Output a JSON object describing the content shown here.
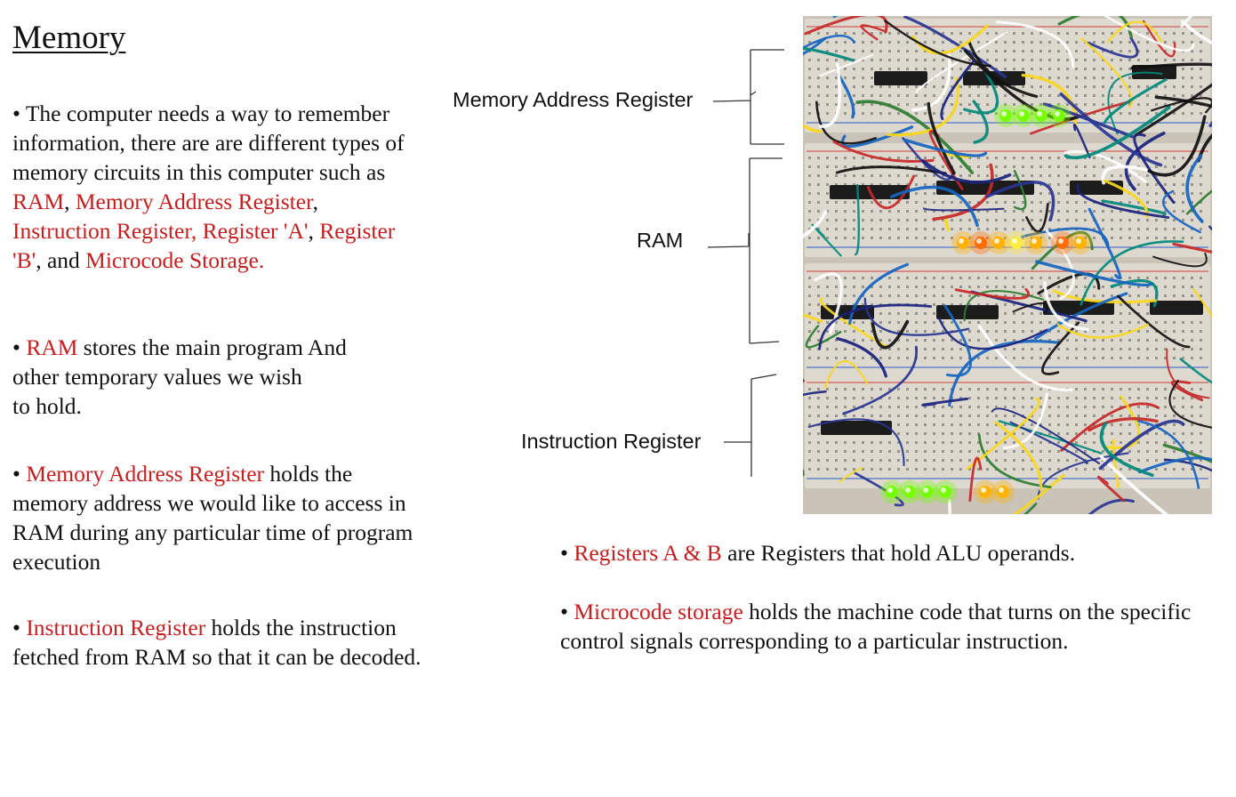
{
  "title": "Memory",
  "bullets_left": [
    {
      "segments": [
        {
          "t": "• The computer needs a way to remember information, there are are different types of memory circuits in this computer such as ",
          "red": false
        },
        {
          "t": "RAM",
          "red": true
        },
        {
          "t": ", ",
          "red": false
        },
        {
          "t": "Memory Address Register",
          "red": true
        },
        {
          "t": ", ",
          "red": false
        },
        {
          "t": "Instruction Register,",
          "red": true
        },
        {
          "t": " ",
          "red": false
        },
        {
          "t": "Register 'A'",
          "red": true
        },
        {
          "t": ", ",
          "red": false
        },
        {
          "t": "Register 'B'",
          "red": true
        },
        {
          "t": ", and ",
          "red": false
        },
        {
          "t": "Microcode Storage.",
          "red": true
        }
      ]
    },
    {
      "segments": [
        {
          "t": "• ",
          "red": false
        },
        {
          "t": "RAM",
          "red": true
        },
        {
          "t": " stores the main program And other temporary values we wish",
          "red": false
        },
        {
          "br": true
        },
        {
          "t": "to hold.",
          "red": false
        }
      ]
    },
    {
      "segments": [
        {
          "t": "• ",
          "red": false
        },
        {
          "t": "Memory Address Register",
          "red": true
        },
        {
          "t": " holds the memory address we would like to access in RAM during any particular time of program execution",
          "red": false
        }
      ]
    },
    {
      "segments": [
        {
          "t": "• ",
          "red": false
        },
        {
          "t": "Instruction Register",
          "red": true
        },
        {
          "t": " holds the instruction fetched from RAM so that it can be decoded.",
          "red": false
        }
      ]
    }
  ],
  "bullets_right": [
    {
      "segments": [
        {
          "t": "• ",
          "red": false
        },
        {
          "t": "Registers A & B",
          "red": true
        },
        {
          "t": " are Registers that hold ALU operands.",
          "red": false
        }
      ]
    },
    {
      "segments": [
        {
          "t": "• ",
          "red": false
        },
        {
          "t": "Microcode storage",
          "red": true
        },
        {
          "t": " holds the machine code that turns on the specific control signals corresponding to a particular instruction.",
          "red": false
        }
      ]
    }
  ],
  "labels": {
    "mar": "Memory Address Register",
    "ram": "RAM",
    "ir": "Instruction Register"
  },
  "photo": {
    "icon": "breadboard-computer-photo",
    "board_color": "#ded9cf",
    "wire_colors": [
      "#1a237e",
      "#283593",
      "#2e7d32",
      "#00897b",
      "#c62828",
      "#f9d71c",
      "#1565c0",
      "#111111",
      "#ffffff"
    ],
    "led_colors": [
      "#ffb300",
      "#ff6d00",
      "#ffeb3b",
      "#76ff03"
    ]
  }
}
